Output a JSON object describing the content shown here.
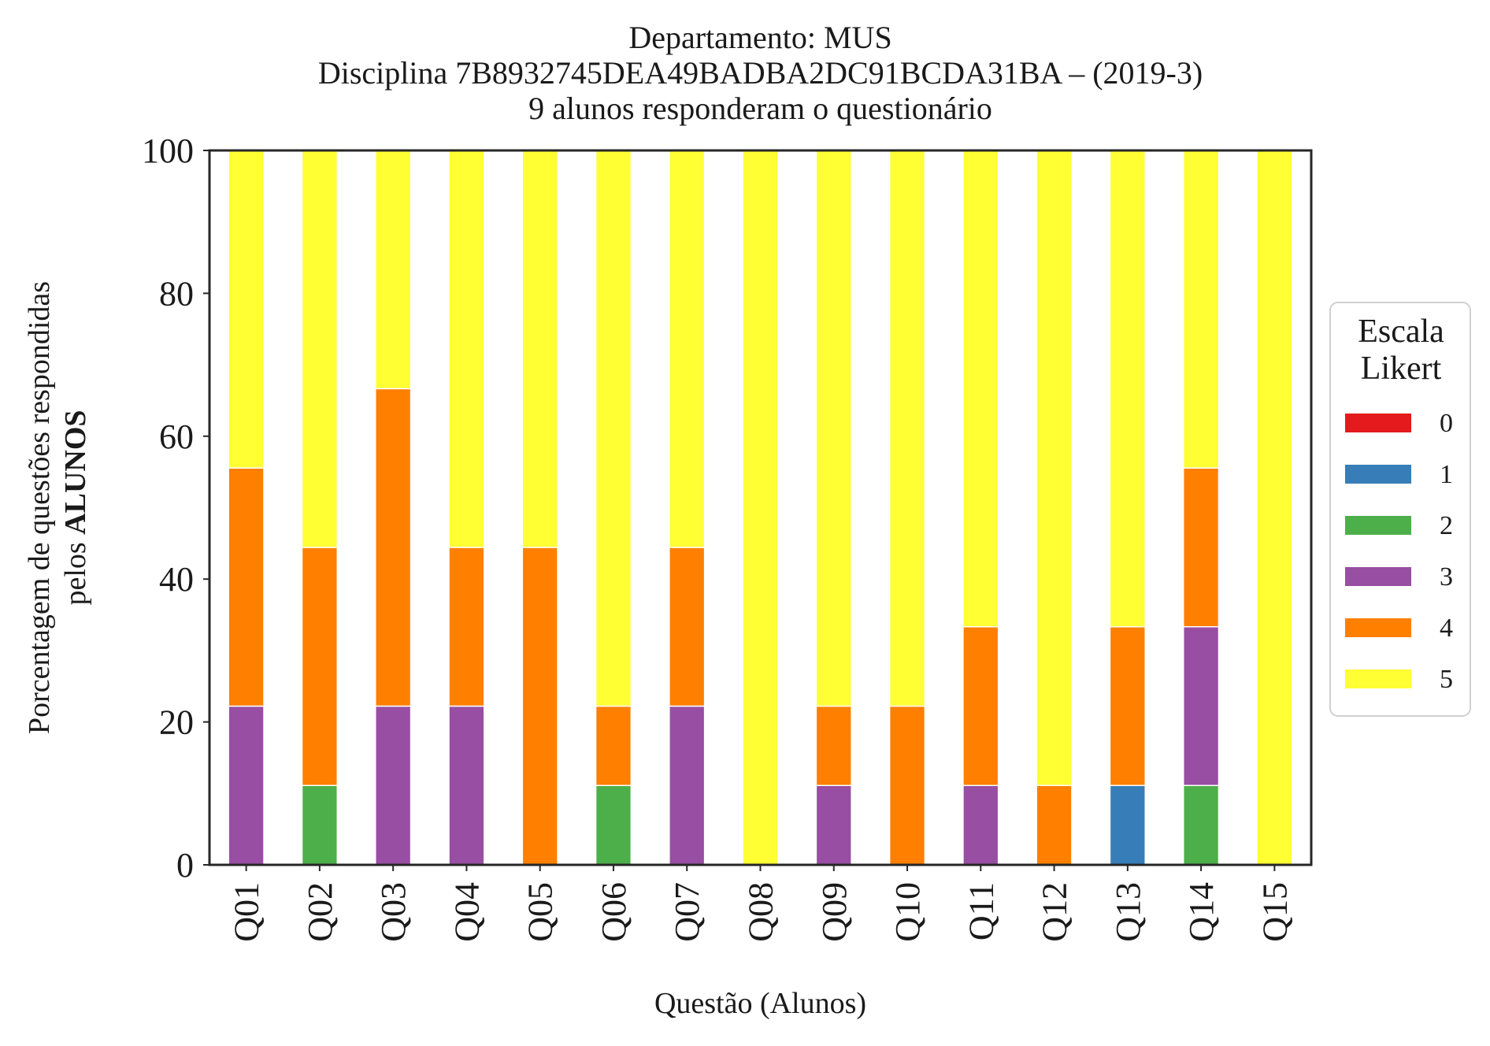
{
  "chart_data": {
    "type": "bar",
    "stacked": true,
    "title_lines": [
      "Departamento: MUS",
      "Disciplina 7B8932745DEA49BADBA2DC91BCDA31BA – (2019-3)",
      "9 alunos responderam o questionário"
    ],
    "xlabel": "Questão (Alunos)",
    "ylabel_line1": "Porcentagem de questões respondidas",
    "ylabel_line2_prefix": "pelos ",
    "ylabel_line2_bold": "ALUNOS",
    "ylim": [
      0,
      100
    ],
    "yticks": [
      "0",
      "20",
      "40",
      "60",
      "80",
      "100"
    ],
    "categories": [
      "Q01",
      "Q02",
      "Q03",
      "Q04",
      "Q05",
      "Q06",
      "Q07",
      "Q08",
      "Q09",
      "Q10",
      "Q11",
      "Q12",
      "Q13",
      "Q14",
      "Q15"
    ],
    "series": [
      {
        "name": "0",
        "color": "#e41a1c",
        "values": [
          0,
          0,
          0,
          0,
          0,
          0,
          0,
          0,
          0,
          0,
          0,
          0,
          0,
          0,
          0
        ]
      },
      {
        "name": "1",
        "color": "#377eb8",
        "values": [
          0,
          0,
          0,
          0,
          0,
          0,
          0,
          0,
          0,
          0,
          0,
          0,
          11.11,
          0,
          0
        ]
      },
      {
        "name": "2",
        "color": "#4daf4a",
        "values": [
          0,
          11.11,
          0,
          0,
          0,
          11.11,
          0,
          0,
          0,
          0,
          0,
          0,
          0,
          11.11,
          0
        ]
      },
      {
        "name": "3",
        "color": "#984ea3",
        "values": [
          22.22,
          0,
          22.22,
          22.22,
          0,
          0,
          22.22,
          0,
          11.11,
          0,
          11.11,
          0,
          0,
          22.22,
          0
        ]
      },
      {
        "name": "4",
        "color": "#ff7f00",
        "values": [
          33.33,
          33.33,
          44.44,
          22.22,
          44.44,
          11.11,
          22.22,
          0,
          11.11,
          22.22,
          22.22,
          11.11,
          22.22,
          22.22,
          0
        ]
      },
      {
        "name": "5",
        "color": "#ffff33",
        "values": [
          44.44,
          55.56,
          33.33,
          55.56,
          55.56,
          77.78,
          55.56,
          100,
          77.78,
          77.78,
          66.67,
          88.89,
          66.67,
          44.44,
          100
        ]
      }
    ],
    "legend": {
      "title_lines": [
        "Escala",
        "Likert"
      ],
      "placement": "right-outside"
    },
    "grid": false
  }
}
